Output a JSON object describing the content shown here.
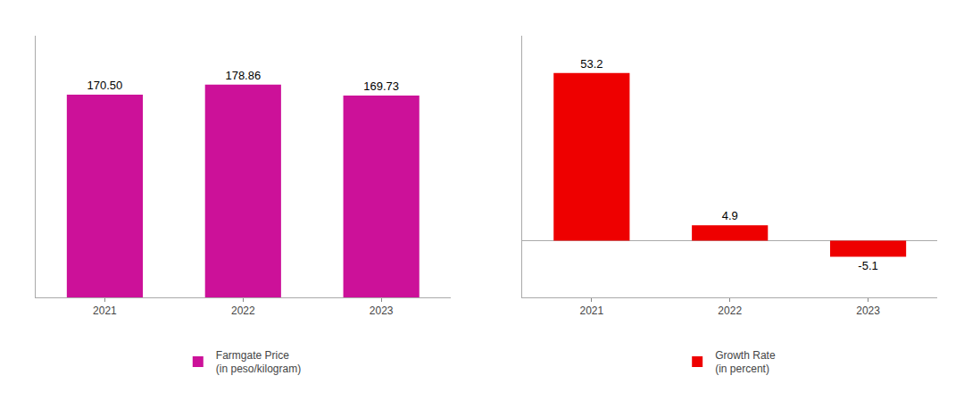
{
  "chart_data": [
    {
      "type": "bar",
      "categories": [
        "2021",
        "2022",
        "2023"
      ],
      "series": [
        {
          "name": "Farmgate Price\n(in peso/kilogram)",
          "color": "#CC1199",
          "values": [
            170.5,
            178.86,
            169.73
          ],
          "value_labels": [
            "170.50",
            "178.86",
            "169.73"
          ]
        }
      ],
      "ylim": [
        0,
        220
      ],
      "data_labels": true,
      "tick_labels": "x",
      "legend": "bottom",
      "grid": false
    },
    {
      "type": "bar",
      "categories": [
        "2021",
        "2022",
        "2023"
      ],
      "series": [
        {
          "name": "Growth Rate\n(in percent)",
          "color": "#EE0000",
          "values": [
            53.2,
            4.9,
            -5.1
          ]
        }
      ],
      "ylim": [
        -18,
        65
      ],
      "data_labels": true,
      "tick_labels": "x",
      "legend": "bottom",
      "grid": false
    }
  ]
}
